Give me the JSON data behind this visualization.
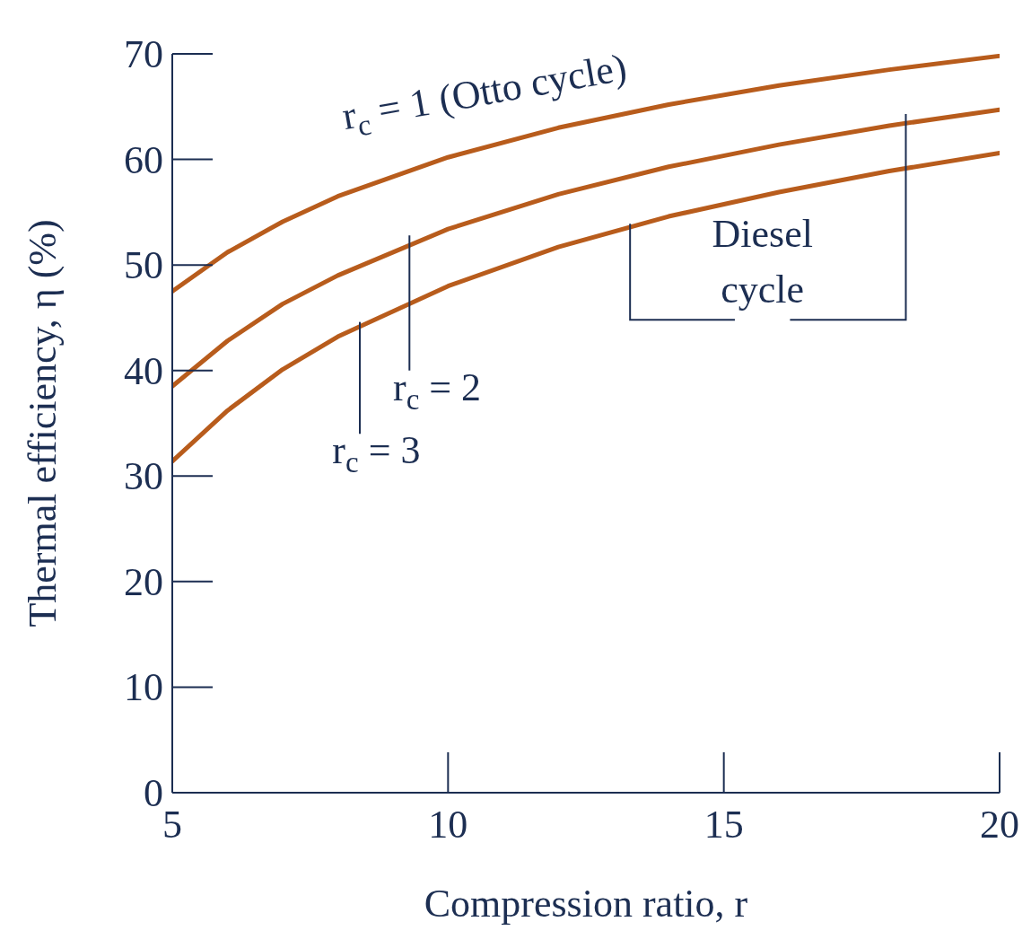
{
  "chart_data": {
    "type": "line",
    "xlabel": "Compression ratio, r",
    "ylabel": "Thermal efficiency, η (%)",
    "x": [
      5,
      6,
      7,
      8,
      10,
      12,
      14,
      16,
      18,
      20
    ],
    "series": [
      {
        "name": "r$_{c}$ = 1 (Otto cycle)",
        "color": "#b85c1c",
        "values": [
          47.5,
          51.2,
          54.1,
          56.5,
          60.2,
          63.0,
          65.2,
          67.0,
          68.5,
          69.8
        ]
      },
      {
        "name": "r$_{c}$ = 2",
        "color": "#b85c1c",
        "values": [
          38.5,
          42.8,
          46.3,
          49.0,
          53.4,
          56.7,
          59.3,
          61.4,
          63.2,
          64.7
        ]
      },
      {
        "name": "r$_{c}$ = 3",
        "color": "#b85c1c",
        "values": [
          31.4,
          36.2,
          40.1,
          43.2,
          48.0,
          51.7,
          54.6,
          56.9,
          58.9,
          60.6
        ]
      }
    ],
    "annotations": [
      {
        "text": "Diesel cycle",
        "x": 13.3,
        "y": 53.9
      }
    ],
    "xlim": [
      5,
      20
    ],
    "xticks": [
      5,
      10,
      15,
      20
    ],
    "ylim": [
      0,
      70
    ],
    "yticks": [
      0,
      10,
      20,
      30,
      40,
      50,
      60,
      70
    ],
    "grid": false,
    "legend": false,
    "marker": "none",
    "line_style": "solid"
  }
}
